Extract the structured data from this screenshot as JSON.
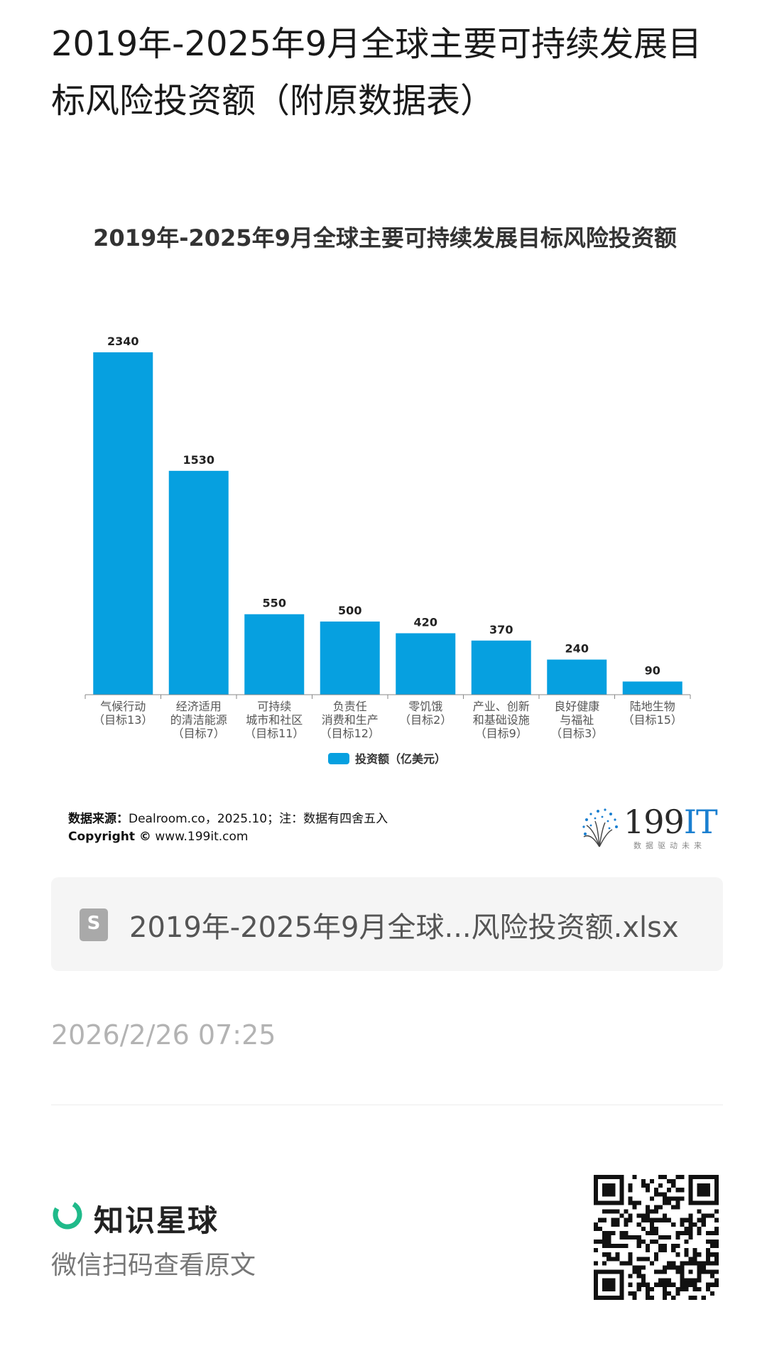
{
  "post": {
    "title": "2019年-2025年9月全球主要可持续发展目标风险投资额（附原数据表）"
  },
  "chart_data": {
    "type": "bar",
    "title": "2019年-2025年9月全球主要可持续发展目标风险投资额",
    "categories": [
      [
        "气候行动",
        "（目标13）"
      ],
      [
        "经济适用",
        "的清洁能源",
        "（目标7）"
      ],
      [
        "可持续",
        "城市和社区",
        "（目标11）"
      ],
      [
        "负责任",
        "消费和生产",
        "（目标12）"
      ],
      [
        "零饥饿",
        "（目标2）"
      ],
      [
        "产业、创新",
        "和基础设施",
        "（目标9）"
      ],
      [
        "良好健康",
        "与福祉",
        "（目标3）"
      ],
      [
        "陆地生物",
        "（目标15）"
      ]
    ],
    "series": [
      {
        "name": "投资额（亿美元）",
        "values": [
          2340,
          1530,
          550,
          500,
          420,
          370,
          240,
          90
        ],
        "color": "#06a0e0"
      }
    ],
    "ylim": [
      0,
      2340
    ],
    "grid": false,
    "legend_position": "bottom-center",
    "data_labels": true
  },
  "source": {
    "label": "数据来源：",
    "text": "Dealroom.co，2025.10；注：数据有四舍五入",
    "copyright_label": "Copyright ©",
    "copyright_text": "www.199it.com"
  },
  "logo": {
    "text_num": "199",
    "text_it": "IT",
    "tagline": "数据驱动未来"
  },
  "attachment": {
    "icon": "S",
    "file_name": "2019年-2025年9月全球...风险投资额.xlsx"
  },
  "timestamp": "2026/2/26 07:25",
  "footer": {
    "brand": "知识星球",
    "scan_hint": "微信扫码查看原文"
  },
  "colors": {
    "bar": "#06a0e0",
    "brand_green": "#1fba8a"
  }
}
